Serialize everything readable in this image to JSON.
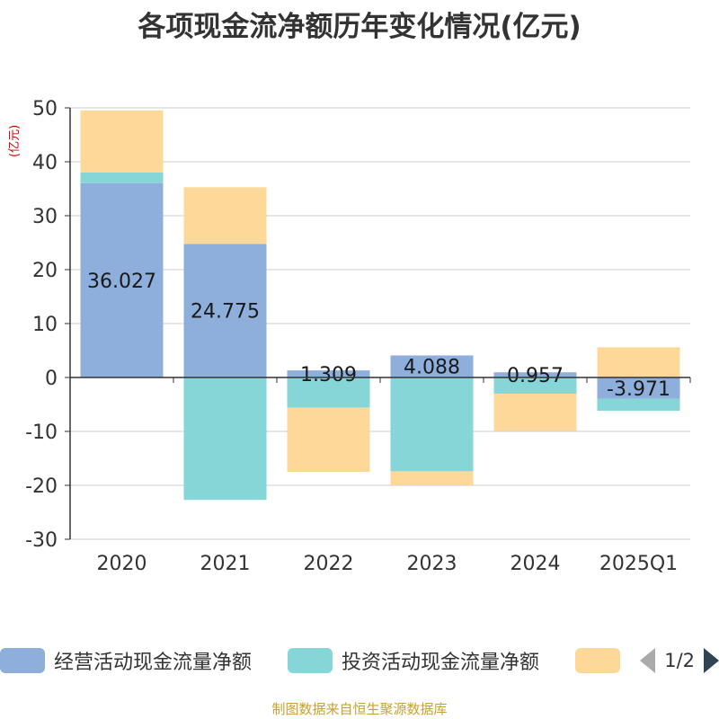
{
  "title": "各项现金流净额历年变化情况(亿元)",
  "unit_label": "(亿元)",
  "source": "制图数据来自恒生聚源数据库",
  "legend": {
    "items": [
      {
        "label": "经营活动现金流量净额",
        "color": "#8eaedb"
      },
      {
        "label": "投资活动现金流量净额",
        "color": "#86d5d7"
      },
      {
        "label": "",
        "color": "#fed898"
      }
    ],
    "pager": "1/2"
  },
  "chart_data": {
    "type": "bar",
    "stacked": true,
    "title": "各项现金流净额历年变化情况(亿元)",
    "ylabel": "(亿元)",
    "ylim": [
      -30,
      50
    ],
    "yticks": [
      50,
      40,
      30,
      20,
      10,
      0,
      -10,
      -20,
      -30
    ],
    "grid": true,
    "categories": [
      "2020",
      "2021",
      "2022",
      "2023",
      "2024",
      "2025Q1"
    ],
    "series": [
      {
        "name": "经营活动现金流量净额",
        "color": "#8eaedb",
        "values": [
          36.027,
          24.775,
          1.309,
          4.088,
          0.957,
          -3.971
        ],
        "labels": [
          "36.027",
          "24.775",
          "1.309",
          "4.088",
          "0.957",
          "-3.971"
        ]
      },
      {
        "name": "投资活动现金流量净额",
        "color": "#86d5d7",
        "values": [
          2.0,
          -22.7,
          -5.6,
          -17.4,
          -3.0,
          -2.2
        ]
      },
      {
        "name": "",
        "color": "#fed898",
        "values": [
          11.5,
          10.5,
          -11.9,
          -2.6,
          -6.9,
          5.6
        ]
      }
    ]
  }
}
